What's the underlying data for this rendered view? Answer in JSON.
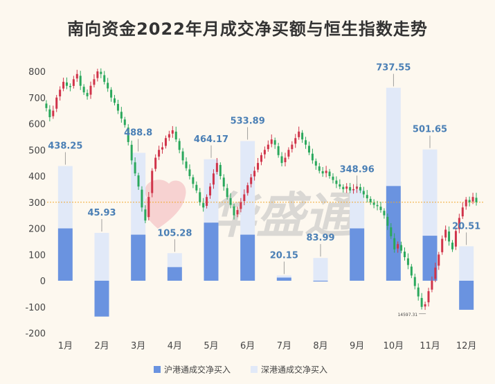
{
  "title": "南向资金2022年月成交净买额与恒生指数走势",
  "watermark": "华盛通",
  "chart_data": {
    "type": "bar",
    "categories": [
      "1月",
      "2月",
      "3月",
      "4月",
      "5月",
      "6月",
      "7月",
      "8月",
      "9月",
      "10月",
      "11月",
      "12月"
    ],
    "series": [
      {
        "name": "沪港通成交净买入",
        "color": "#6a93e0",
        "values": [
          200,
          -137,
          176,
          52,
          222,
          176,
          12,
          -3,
          200,
          362,
          172,
          -111
        ]
      },
      {
        "name": "深港通成交净买入",
        "color": "#e1e9f8",
        "values": [
          238.25,
          182.93,
          312.8,
          53.28,
          242.17,
          357.89,
          8.15,
          86.99,
          148.96,
          375.55,
          329.65,
          131.51
        ]
      }
    ],
    "total_labels": [
      "438.25",
      "45.93",
      "488.8",
      "105.28",
      "464.17",
      "533.89",
      "20.15",
      "83.99",
      "348.96",
      "737.55",
      "501.65",
      "20.51"
    ],
    "yticks": [
      -200,
      -100,
      0,
      100,
      200,
      300,
      400,
      500,
      600,
      700,
      800
    ],
    "ylim": [
      -200,
      830
    ],
    "reference_line": 300,
    "overlay_series": {
      "type": "candlestick",
      "min_label": "14597.31",
      "up_color": "#d0344a",
      "down_color": "#2aa85c",
      "points": [
        [
          1,
          680
        ],
        [
          3,
          660
        ],
        [
          5,
          625
        ],
        [
          7,
          650
        ],
        [
          9,
          700
        ],
        [
          11,
          730
        ],
        [
          13,
          760
        ],
        [
          15,
          745
        ],
        [
          17,
          740
        ],
        [
          19,
          770
        ],
        [
          21,
          790
        ],
        [
          23,
          745
        ],
        [
          25,
          720
        ],
        [
          27,
          705
        ],
        [
          29,
          745
        ],
        [
          31,
          770
        ],
        [
          33,
          800
        ],
        [
          35,
          790
        ],
        [
          37,
          760
        ],
        [
          39,
          735
        ],
        [
          41,
          700
        ],
        [
          43,
          680
        ],
        [
          45,
          650
        ],
        [
          47,
          620
        ],
        [
          49,
          595
        ],
        [
          51,
          530
        ],
        [
          53,
          460
        ],
        [
          55,
          410
        ],
        [
          57,
          360
        ],
        [
          59,
          280
        ],
        [
          61,
          230
        ],
        [
          63,
          320
        ],
        [
          65,
          420
        ],
        [
          67,
          470
        ],
        [
          69,
          500
        ],
        [
          71,
          510
        ],
        [
          73,
          545
        ],
        [
          75,
          560
        ],
        [
          77,
          575
        ],
        [
          79,
          540
        ],
        [
          81,
          500
        ],
        [
          83,
          460
        ],
        [
          85,
          430
        ],
        [
          87,
          400
        ],
        [
          89,
          370
        ],
        [
          91,
          345
        ],
        [
          93,
          300
        ],
        [
          95,
          280
        ],
        [
          97,
          320
        ],
        [
          99,
          360
        ],
        [
          101,
          410
        ],
        [
          103,
          450
        ],
        [
          105,
          400
        ],
        [
          107,
          360
        ],
        [
          109,
          320
        ],
        [
          111,
          290
        ],
        [
          113,
          250
        ],
        [
          115,
          270
        ],
        [
          117,
          300
        ],
        [
          119,
          330
        ],
        [
          121,
          365
        ],
        [
          123,
          395
        ],
        [
          125,
          420
        ],
        [
          127,
          450
        ],
        [
          129,
          480
        ],
        [
          131,
          500
        ],
        [
          133,
          520
        ],
        [
          135,
          540
        ],
        [
          137,
          520
        ],
        [
          139,
          480
        ],
        [
          141,
          450
        ],
        [
          143,
          470
        ],
        [
          145,
          500
        ],
        [
          147,
          520
        ],
        [
          149,
          545
        ],
        [
          151,
          570
        ],
        [
          153,
          540
        ],
        [
          155,
          520
        ],
        [
          157,
          490
        ],
        [
          159,
          460
        ],
        [
          161,
          440
        ],
        [
          163,
          420
        ],
        [
          165,
          410
        ],
        [
          167,
          420
        ],
        [
          169,
          400
        ],
        [
          171,
          385
        ],
        [
          173,
          370
        ],
        [
          175,
          360
        ],
        [
          177,
          350
        ],
        [
          179,
          360
        ],
        [
          181,
          345
        ],
        [
          183,
          350
        ],
        [
          185,
          360
        ],
        [
          187,
          345
        ],
        [
          189,
          330
        ],
        [
          191,
          315
        ],
        [
          193,
          300
        ],
        [
          195,
          290
        ],
        [
          197,
          285
        ],
        [
          199,
          270
        ],
        [
          201,
          250
        ],
        [
          203,
          210
        ],
        [
          205,
          170
        ],
        [
          207,
          120
        ],
        [
          209,
          140
        ],
        [
          211,
          115
        ],
        [
          213,
          90
        ],
        [
          215,
          60
        ],
        [
          217,
          20
        ],
        [
          219,
          -20
        ],
        [
          221,
          -60
        ],
        [
          223,
          -100
        ],
        [
          225,
          -90
        ],
        [
          227,
          -40
        ],
        [
          229,
          0
        ],
        [
          231,
          50
        ],
        [
          233,
          100
        ],
        [
          235,
          160
        ],
        [
          237,
          195
        ],
        [
          239,
          150
        ],
        [
          241,
          120
        ],
        [
          243,
          190
        ],
        [
          245,
          240
        ],
        [
          247,
          280
        ],
        [
          249,
          310
        ],
        [
          251,
          300
        ],
        [
          253,
          320
        ],
        [
          255,
          300
        ]
      ]
    }
  }
}
